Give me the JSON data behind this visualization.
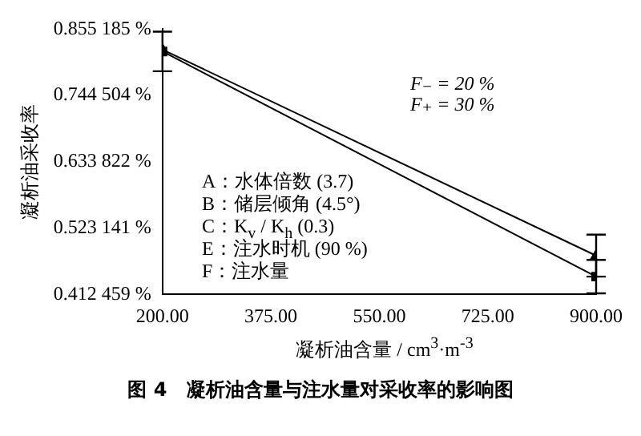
{
  "chart_data": {
    "type": "line",
    "title": "图 4　凝析油含量与注水量对采收率的影响图",
    "xlabel": "凝析油含量 / cm$^{3}$·m$^{-3}$",
    "ylabel": "凝析油采收率",
    "x": [
      200,
      900
    ],
    "series": [
      {
        "color": "#000000",
        "marker": "triangle",
        "values": [
          0.821,
          0.477
        ],
        "errors": [
          null,
          0.035
        ]
      },
      {
        "color": "#000000",
        "marker": "square",
        "values": [
          0.818,
          0.442
        ],
        "errors": [
          0.033,
          0.028
        ]
      }
    ],
    "xlim": [
      200,
      900
    ],
    "xticks": [
      {
        "value": 200,
        "label": "200.00"
      },
      {
        "value": 375,
        "label": "375.00"
      },
      {
        "value": 550,
        "label": "550.00"
      },
      {
        "value": 725,
        "label": "725.00"
      },
      {
        "value": 900,
        "label": "900.00"
      }
    ],
    "ylim": [
      0.412459,
      0.855185
    ],
    "yticks": [
      {
        "value": 0.412459,
        "label": "0.412 459 %"
      },
      {
        "value": 0.523141,
        "label": "0.523 141 %"
      },
      {
        "value": 0.633822,
        "label": "0.633 822 %"
      },
      {
        "value": 0.744504,
        "label": "0.744 504 %"
      },
      {
        "value": 0.855185,
        "label": "0.855 185 %"
      }
    ],
    "grid": false,
    "legend": false,
    "line_style": "solid",
    "annotations": [
      "F₋ = 20 %",
      "F₊ = 30 %",
      "A：水体倍数 (3.7)",
      "B：储层倾角 (4.5°)",
      "C：K$_{v}$ / K$_{h}$ (0.3)",
      "E：注水时机 (90 %)",
      "F：注水量"
    ]
  }
}
